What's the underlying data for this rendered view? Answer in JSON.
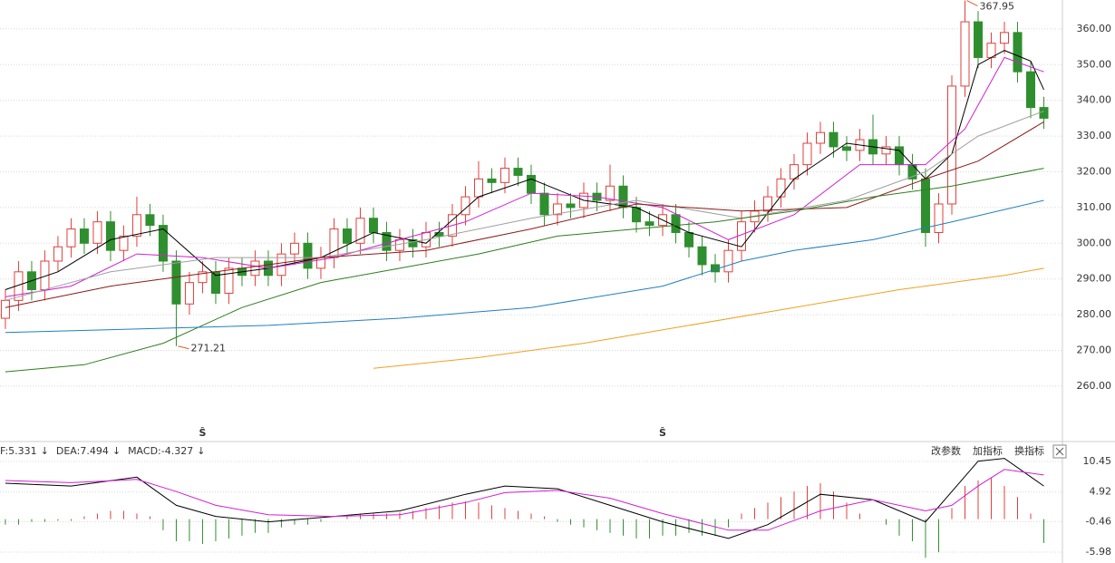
{
  "chart_data": [
    {
      "type": "candlestick",
      "xlim": [
        -0.41,
        79.93
      ],
      "ylim": [
        245,
        368.1
      ],
      "yticks": [
        {
          "value": 260,
          "label": "260.00"
        },
        {
          "value": 270,
          "label": "270.00"
        },
        {
          "value": 280,
          "label": "280.00"
        },
        {
          "value": 290,
          "label": "290.00"
        },
        {
          "value": 300,
          "label": "300.00"
        },
        {
          "value": 310,
          "label": "310.00"
        },
        {
          "value": 320,
          "label": "320.00"
        },
        {
          "value": 330,
          "label": "330.00"
        },
        {
          "value": 340,
          "label": "340.00"
        },
        {
          "value": 350,
          "label": "350.00"
        },
        {
          "value": 360,
          "label": "360.00"
        }
      ],
      "grid": true,
      "up_color": "#e0403c",
      "down_color": "#2f8f2f",
      "candles": {
        "open": [
          279,
          284,
          292,
          287,
          295,
          299,
          304,
          300,
          306,
          298,
          302,
          308,
          305,
          295,
          283,
          289,
          292,
          286,
          293,
          291,
          295,
          291,
          297,
          300,
          293,
          296,
          304,
          300,
          307,
          303,
          298,
          301,
          299,
          303,
          302,
          308,
          313,
          318,
          317,
          321,
          319,
          314,
          308,
          311,
          310,
          314,
          312,
          316,
          310,
          306,
          305,
          308,
          303,
          299,
          294,
          292,
          298,
          306,
          309,
          313,
          318,
          322,
          328,
          331,
          327,
          326,
          329,
          325,
          327,
          322,
          318,
          303,
          311,
          344,
          362,
          352,
          356,
          359,
          348,
          338
        ],
        "high": [
          287,
          295,
          295,
          298,
          302,
          307,
          307,
          309,
          309,
          305,
          313,
          311,
          308,
          298,
          292,
          295,
          295,
          296,
          296,
          298,
          298,
          300,
          303,
          303,
          299,
          307,
          307,
          310,
          310,
          306,
          304,
          304,
          306,
          306,
          311,
          316,
          323,
          321,
          324,
          324,
          322,
          317,
          314,
          314,
          317,
          317,
          322,
          319,
          313,
          309,
          311,
          311,
          306,
          302,
          297,
          301,
          309,
          312,
          316,
          321,
          325,
          331,
          334,
          334,
          330,
          332,
          336,
          330,
          330,
          325,
          321,
          314,
          347,
          367.95,
          365,
          359,
          362,
          362,
          351,
          341
        ],
        "low": [
          276,
          281,
          284,
          284,
          292,
          296,
          297,
          297,
          295,
          295,
          299,
          302,
          292,
          271.21,
          280,
          286,
          283,
          283,
          288,
          288,
          288,
          288,
          294,
          290,
          290,
          293,
          297,
          297,
          300,
          295,
          295,
          296,
          296,
          299,
          299,
          305,
          310,
          314,
          314,
          316,
          311,
          305,
          305,
          307,
          307,
          309,
          309,
          307,
          303,
          302,
          302,
          300,
          296,
          291,
          289,
          289,
          295,
          303,
          306,
          310,
          315,
          319,
          325,
          324,
          323,
          323,
          322,
          322,
          319,
          315,
          299,
          300,
          308,
          341,
          349,
          349,
          353,
          345,
          335,
          332
        ],
        "close": [
          284,
          292,
          287,
          295,
          299,
          304,
          300,
          306,
          298,
          302,
          308,
          305,
          295,
          283,
          289,
          292,
          286,
          293,
          291,
          295,
          291,
          297,
          300,
          293,
          296,
          304,
          300,
          307,
          303,
          298,
          301,
          299,
          303,
          302,
          308,
          313,
          318,
          317,
          321,
          319,
          314,
          308,
          311,
          310,
          314,
          312,
          316,
          310,
          306,
          305,
          308,
          303,
          299,
          294,
          292,
          298,
          306,
          309,
          313,
          318,
          322,
          328,
          331,
          327,
          326,
          329,
          325,
          327,
          322,
          318,
          303,
          311,
          344,
          362,
          352,
          356,
          359,
          348,
          338,
          335
        ]
      },
      "series": [
        {
          "color": "#000000",
          "x": [
            0,
            4,
            8,
            12,
            16,
            20,
            24,
            28,
            32,
            36,
            40,
            44,
            48,
            52,
            56,
            60,
            64,
            68,
            70,
            72,
            74,
            76,
            78,
            79
          ],
          "values": [
            287,
            292,
            301,
            304,
            291,
            293,
            296,
            303,
            300,
            313,
            318,
            312,
            310,
            303,
            299,
            318,
            328,
            326,
            318,
            325,
            350,
            354,
            351,
            343
          ]
        },
        {
          "color": "#d020d0",
          "x": [
            0,
            5,
            10,
            15,
            20,
            25,
            30,
            35,
            40,
            45,
            50,
            55,
            60,
            65,
            70,
            73,
            76,
            79
          ],
          "values": [
            285,
            288,
            297,
            296,
            293,
            296,
            301,
            306,
            314,
            313,
            310,
            301,
            308,
            322,
            322,
            332,
            352,
            348
          ]
        },
        {
          "color": "#a0a0a0",
          "x": [
            0,
            8,
            16,
            24,
            32,
            40,
            48,
            56,
            64,
            70,
            74,
            79
          ],
          "values": [
            284,
            292,
            296,
            296,
            301,
            307,
            312,
            307,
            312,
            320,
            330,
            337
          ]
        },
        {
          "color": "#8b1a1a",
          "x": [
            0,
            8,
            16,
            24,
            32,
            40,
            48,
            56,
            64,
            70,
            74,
            79
          ],
          "values": [
            282,
            288,
            292,
            296,
            298,
            304,
            311,
            309,
            310,
            318,
            323,
            334
          ]
        },
        {
          "color": "#2e7d1e",
          "x": [
            0,
            6,
            12,
            18,
            24,
            30,
            36,
            42,
            48,
            54,
            60,
            66,
            72,
            79
          ],
          "values": [
            264,
            266,
            272,
            282,
            289,
            293,
            297,
            302,
            304,
            306,
            309,
            313,
            316,
            321
          ]
        },
        {
          "color": "#1f7fc0",
          "x": [
            0,
            10,
            20,
            30,
            40,
            50,
            56,
            60,
            66,
            72,
            79
          ],
          "values": [
            275,
            276,
            277,
            279,
            282,
            288,
            295,
            298,
            301,
            306,
            312
          ]
        },
        {
          "color": "#f0a020",
          "x": [
            28,
            36,
            44,
            52,
            60,
            68,
            76,
            79
          ],
          "values": [
            265,
            268,
            272,
            277,
            282,
            287,
            291,
            293
          ]
        }
      ],
      "signals": [
        {
          "label": "Ŝ",
          "x": 15
        },
        {
          "label": "Ŝ",
          "x": 50
        }
      ]
    },
    {
      "type": "macd",
      "xlim": [
        -0.41,
        79.93
      ],
      "ylim": [
        -7.95,
        14.06
      ],
      "yticks": [
        10.45,
        4.92,
        -0.46,
        -5.98
      ],
      "legend": [
        {
          "label": "F:5.331",
          "arrow": "↓",
          "color": "#000000"
        },
        {
          "label": "DEA:7.494",
          "arrow": "↓",
          "color": "#d020d0"
        },
        {
          "label": "MACD:-4.327",
          "arrow": "↓",
          "color": "#888888"
        }
      ],
      "buttons": [
        "改参数",
        "加指标",
        "换指标"
      ],
      "series": [
        {
          "color": "#000000",
          "x": [
            0,
            5,
            10,
            13,
            16,
            20,
            25,
            30,
            35,
            38,
            42,
            46,
            50,
            55,
            58,
            62,
            66,
            70,
            72,
            74,
            76,
            79
          ],
          "values": [
            6.5,
            6.0,
            7.6,
            2.5,
            0.5,
            -0.5,
            0.5,
            1.5,
            4.5,
            6.0,
            5.5,
            2.5,
            -0.5,
            -3.5,
            -1.0,
            4.5,
            3.5,
            -0.5,
            5.0,
            10.5,
            11.0,
            6.0
          ]
        },
        {
          "color": "#d020d0",
          "x": [
            0,
            5,
            10,
            13,
            16,
            20,
            25,
            30,
            35,
            38,
            42,
            46,
            50,
            55,
            58,
            62,
            66,
            70,
            72,
            74,
            76,
            79
          ],
          "values": [
            7.0,
            6.6,
            7.2,
            5.0,
            2.5,
            0.8,
            0.5,
            0.8,
            3.0,
            4.8,
            5.2,
            3.8,
            1.0,
            -2.0,
            -2.0,
            1.5,
            3.5,
            1.5,
            2.5,
            6.0,
            9.0,
            8.0
          ]
        }
      ],
      "histogram": {
        "up_color": "#e0403c",
        "down_color": "#2f8f2f",
        "values": [
          -1,
          -1,
          -0.5,
          -0.5,
          -0.3,
          -0.3,
          0.5,
          1,
          1.5,
          1.5,
          1,
          0.5,
          -2,
          -4,
          -4,
          -4.5,
          -4,
          -3.5,
          -3,
          -2.5,
          -2.5,
          -1.5,
          -1,
          -1,
          -0.5,
          0,
          0.5,
          1,
          1,
          1,
          1.2,
          1.5,
          2,
          2.5,
          3,
          3.2,
          3,
          2.5,
          2,
          1.5,
          1,
          0.5,
          -0.5,
          -1,
          -1.5,
          -2,
          -2.5,
          -3,
          -3.5,
          -3.5,
          -3,
          -3,
          -2.5,
          -3,
          -3,
          -1.5,
          1,
          2,
          3,
          4,
          5,
          6,
          6.5,
          5,
          3,
          1,
          0,
          -1,
          -3,
          -4,
          -7,
          -6,
          2,
          6,
          7,
          7.5,
          6,
          4,
          1,
          -4.327
        ]
      }
    }
  ]
}
